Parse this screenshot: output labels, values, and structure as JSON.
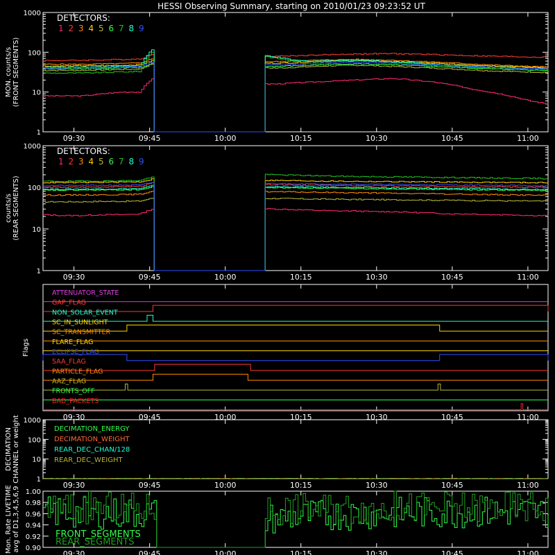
{
  "title": "HESSI Observing Summary, starting on 2010/01/23 09:23:52 UT",
  "colors": {
    "background": "#000000",
    "axes": "#ffffff",
    "detectors": [
      "#ff2a6d",
      "#ff3b30",
      "#ff8c00",
      "#ffd400",
      "#b7b735",
      "#30ff4a",
      "#20c020",
      "#20ffd0",
      "#3050ff"
    ]
  },
  "time_axis": {
    "start": "09:23:52",
    "end": "11:04:00",
    "ticks": [
      "09:30",
      "09:45",
      "10:00",
      "10:15",
      "10:30",
      "10:45",
      "11:00"
    ]
  },
  "chart_data": [
    {
      "type": "line",
      "ylabel": "MON. counts/s",
      "ylabel2": "(FRONT SEGMENTS)",
      "yscale": "log",
      "ylim": [
        1,
        1000
      ],
      "ytick_labels": [
        "1",
        "10",
        "100",
        "1000"
      ],
      "legend_title": "DETECTORS:",
      "legend_items": [
        "1",
        "2",
        "3",
        "4",
        "5",
        "6",
        "7",
        "8",
        "9"
      ],
      "gap": [
        "09:45:40",
        "10:07:30"
      ],
      "series": [
        {
          "name": "1",
          "color": "#ff2a6d",
          "values": [
            8,
            8,
            8,
            9,
            10,
            10,
            30,
            1,
            1,
            1,
            17,
            16,
            16,
            17,
            18,
            19,
            20,
            21,
            22,
            20,
            18,
            15,
            12,
            10,
            8,
            6,
            5
          ]
        },
        {
          "name": "2",
          "color": "#ff3b30",
          "values": [
            62,
            62,
            63,
            64,
            66,
            68,
            100,
            1,
            1,
            1,
            80,
            80,
            80,
            82,
            85,
            88,
            90,
            92,
            92,
            90,
            88,
            85,
            82,
            80,
            78,
            76,
            75
          ]
        },
        {
          "name": "3",
          "color": "#ff8c00",
          "values": [
            50,
            50,
            50,
            51,
            52,
            54,
            80,
            1,
            1,
            1,
            60,
            59,
            58,
            60,
            63,
            65,
            66,
            65,
            63,
            60,
            57,
            54,
            51,
            48,
            46,
            44,
            43
          ]
        },
        {
          "name": "4",
          "color": "#ffd400",
          "values": [
            45,
            45,
            46,
            46,
            47,
            49,
            70,
            1,
            1,
            1,
            55,
            54,
            53,
            55,
            58,
            60,
            61,
            60,
            58,
            56,
            53,
            50,
            48,
            46,
            44,
            42,
            41
          ]
        },
        {
          "name": "5",
          "color": "#b7b735",
          "values": [
            35,
            35,
            35,
            36,
            37,
            38,
            60,
            1,
            1,
            1,
            42,
            41,
            40,
            42,
            44,
            46,
            47,
            46,
            44,
            42,
            40,
            38,
            36,
            34,
            33,
            32,
            31
          ]
        },
        {
          "name": "6",
          "color": "#30ff4a",
          "values": [
            38,
            38,
            39,
            39,
            40,
            41,
            60,
            1,
            1,
            1,
            46,
            45,
            44,
            46,
            48,
            50,
            51,
            50,
            48,
            46,
            44,
            42,
            40,
            38,
            37,
            36,
            35
          ]
        },
        {
          "name": "7",
          "color": "#20c020",
          "values": [
            30,
            30,
            30,
            31,
            32,
            33,
            150,
            1,
            1,
            1,
            90,
            85,
            70,
            60,
            58,
            60,
            62,
            60,
            56,
            52,
            48,
            45,
            42,
            40,
            38,
            36,
            35
          ]
        },
        {
          "name": "8",
          "color": "#20ffd0",
          "values": [
            42,
            42,
            43,
            43,
            44,
            46,
            160,
            1,
            1,
            1,
            95,
            88,
            75,
            62,
            60,
            62,
            64,
            62,
            58,
            55,
            50,
            47,
            45,
            43,
            41,
            40,
            39
          ]
        },
        {
          "name": "9",
          "color": "#3050ff",
          "values": [
            40,
            40,
            41,
            41,
            42,
            44,
            65,
            1,
            1,
            1,
            50,
            49,
            48,
            50,
            53,
            55,
            56,
            55,
            53,
            50,
            48,
            46,
            44,
            42,
            40,
            39,
            38
          ]
        }
      ]
    },
    {
      "type": "line",
      "ylabel": "counts/s",
      "ylabel2": "(REAR SEGMENTS)",
      "yscale": "log",
      "ylim": [
        1,
        1000
      ],
      "ytick_labels": [
        "1",
        "10",
        "100",
        "1000"
      ],
      "legend_title": "DETECTORS:",
      "legend_items": [
        "1",
        "2",
        "3",
        "4",
        "5",
        "6",
        "7",
        "8",
        "9"
      ],
      "gap": [
        "09:45:40",
        "10:07:30"
      ],
      "series": [
        {
          "name": "1",
          "color": "#ff2a6d",
          "values": [
            22,
            21,
            21,
            22,
            22,
            23,
            35,
            1,
            1,
            1,
            32,
            31,
            30,
            29,
            28,
            27,
            27,
            26,
            26,
            25,
            24,
            23,
            23,
            22,
            22,
            21,
            21
          ]
        },
        {
          "name": "2",
          "color": "#ff3b30",
          "values": [
            100,
            100,
            101,
            102,
            104,
            106,
            140,
            1,
            1,
            1,
            120,
            118,
            116,
            114,
            112,
            110,
            110,
            109,
            108,
            107,
            106,
            105,
            104,
            103,
            102,
            101,
            100
          ]
        },
        {
          "name": "3",
          "color": "#ff8c00",
          "values": [
            65,
            65,
            66,
            66,
            67,
            68,
            90,
            1,
            1,
            1,
            80,
            79,
            78,
            77,
            76,
            75,
            74,
            73,
            72,
            71,
            70,
            69,
            68,
            67,
            66,
            65,
            64
          ]
        },
        {
          "name": "4",
          "color": "#ffd400",
          "values": [
            130,
            130,
            131,
            132,
            134,
            136,
            170,
            1,
            1,
            1,
            150,
            148,
            146,
            144,
            142,
            140,
            139,
            138,
            137,
            136,
            135,
            134,
            133,
            132,
            131,
            130,
            129
          ]
        },
        {
          "name": "5",
          "color": "#b7b735",
          "values": [
            45,
            45,
            45,
            46,
            46,
            47,
            60,
            1,
            1,
            1,
            55,
            54,
            54,
            53,
            52,
            52,
            51,
            51,
            50,
            50,
            49,
            49,
            48,
            48,
            47,
            47,
            46
          ]
        },
        {
          "name": "6",
          "color": "#30ff4a",
          "values": [
            85,
            85,
            86,
            86,
            87,
            88,
            110,
            1,
            1,
            1,
            100,
            99,
            98,
            97,
            96,
            95,
            94,
            93,
            92,
            91,
            90,
            89,
            88,
            87,
            86,
            85,
            84
          ]
        },
        {
          "name": "7",
          "color": "#20c020",
          "values": [
            140,
            140,
            141,
            142,
            144,
            146,
            200,
            1,
            1,
            1,
            210,
            205,
            200,
            195,
            190,
            185,
            182,
            180,
            178,
            176,
            174,
            172,
            170,
            168,
            166,
            164,
            162
          ]
        },
        {
          "name": "8",
          "color": "#20ffd0",
          "values": [
            90,
            90,
            91,
            91,
            92,
            93,
            120,
            1,
            1,
            1,
            105,
            104,
            103,
            102,
            101,
            100,
            99,
            98,
            97,
            96,
            95,
            94,
            93,
            92,
            91,
            90,
            89
          ]
        },
        {
          "name": "9",
          "color": "#3050ff",
          "values": [
            110,
            110,
            111,
            112,
            113,
            114,
            140,
            1,
            1,
            1,
            125,
            124,
            123,
            122,
            121,
            120,
            119,
            118,
            117,
            116,
            115,
            114,
            113,
            112,
            111,
            110,
            109
          ]
        }
      ]
    },
    {
      "type": "line",
      "ylabel": "Flags",
      "flags": [
        {
          "name": "ATTENUATOR_STATE",
          "color": "#e040e0",
          "on": []
        },
        {
          "name": "GAP_FLAG",
          "color": "#ff3b30",
          "on": [
            [
              "09:45:40",
              "11:04:00"
            ]
          ]
        },
        {
          "name": "NON_SOLAR_EVENT",
          "color": "#20ffd0",
          "on": [
            [
              "09:44:30",
              "09:45:40"
            ]
          ]
        },
        {
          "name": "SC_IN_SUNLIGHT",
          "color": "#ffd400",
          "on": [
            [
              "09:40:30",
              "10:42:30"
            ]
          ]
        },
        {
          "name": "SC_TRANSMITTER",
          "color": "#ff8c00",
          "on": []
        },
        {
          "name": "FLARE_FLAG",
          "color": "#ffd400",
          "on": []
        },
        {
          "name": "ECLIPSE_FLAG",
          "color": "#3050ff",
          "on": [
            [
              "09:23:52",
              "09:40:30"
            ],
            [
              "10:42:30",
              "11:04:00"
            ]
          ]
        },
        {
          "name": "SAA_FLAG",
          "color": "#ff3b30",
          "on": [
            [
              "09:46:00",
              "10:05:00"
            ]
          ]
        },
        {
          "name": "PARTICLE_FLAG",
          "color": "#ff8c00",
          "on": [
            [
              "09:45:40",
              "10:04:30"
            ]
          ]
        },
        {
          "name": "AAZ_FLAG",
          "color": "#b7b735",
          "on": [
            [
              "09:40:10",
              "09:40:40"
            ],
            [
              "10:42:10",
              "10:42:40"
            ]
          ]
        },
        {
          "name": "FRONTS_OFF",
          "color": "#30ff4a",
          "on": []
        },
        {
          "name": "BAD_PACKETS",
          "color": "#ff2020",
          "on": [
            [
              "10:58:40",
              "10:59:00"
            ]
          ]
        }
      ]
    },
    {
      "type": "line",
      "ylabel": "DECIMATION",
      "ylabel2": "CHANNEL or weight",
      "yscale": "log",
      "ylim": [
        1,
        1000
      ],
      "ytick_labels": [
        "1",
        "10",
        "100",
        "1000"
      ],
      "legend_items": [
        "DECIMATION_ENERGY",
        "DECIMATION_WEIGHT",
        "REAR_DEC_CHAN/128",
        "REAR_DEC_WEIGHT"
      ],
      "series": [
        {
          "name": "DECIMATION_ENERGY",
          "color": "#30ff4a",
          "values": [
            1,
            1
          ]
        },
        {
          "name": "DECIMATION_WEIGHT",
          "color": "#ff6a30",
          "values": [
            1,
            1
          ]
        },
        {
          "name": "REAR_DEC_CHAN/128",
          "color": "#20ffd0",
          "values": [
            1,
            1
          ]
        },
        {
          "name": "REAR_DEC_WEIGHT",
          "color": "#b7b735",
          "values": [
            1,
            1
          ]
        }
      ]
    },
    {
      "type": "line",
      "ylabel": "Mon. Rate LIVETIME",
      "ylabel2": "avg of D1,3,4,5,6,9",
      "ylim": [
        0.9,
        1.0
      ],
      "yticks": [
        0.9,
        0.92,
        0.94,
        0.96,
        0.98,
        1.0
      ],
      "ytick_labels": [
        "0.90",
        "0.92",
        "0.94",
        "0.96",
        "0.98",
        "1.00"
      ],
      "legend_items": [
        "FRONT_SEGMENTS",
        "REAR_SEGMENTS"
      ],
      "gap": [
        "09:46:10",
        "10:07:40"
      ],
      "series": [
        {
          "name": "FRONT_SEGMENTS",
          "color": "#30ff4a",
          "values": [
            0.962,
            0.962,
            0.961,
            0.961,
            0.961,
            0.961,
            0.96,
            0.9,
            0.9,
            0.9,
            0.942,
            0.948,
            0.952,
            0.955,
            0.957,
            0.958,
            0.959,
            0.96,
            0.961,
            0.961,
            0.962,
            0.962,
            0.963,
            0.963,
            0.963,
            0.963,
            0.963
          ]
        },
        {
          "name": "REAR_SEGMENTS",
          "color": "#20a020",
          "values": [
            0.971,
            0.971,
            0.971,
            0.97,
            0.97,
            0.97,
            0.97,
            0.9,
            0.9,
            0.9,
            0.965,
            0.967,
            0.968,
            0.969,
            0.969,
            0.97,
            0.97,
            0.97,
            0.971,
            0.971,
            0.971,
            0.971,
            0.972,
            0.972,
            0.972,
            0.972,
            0.972
          ]
        }
      ]
    }
  ]
}
